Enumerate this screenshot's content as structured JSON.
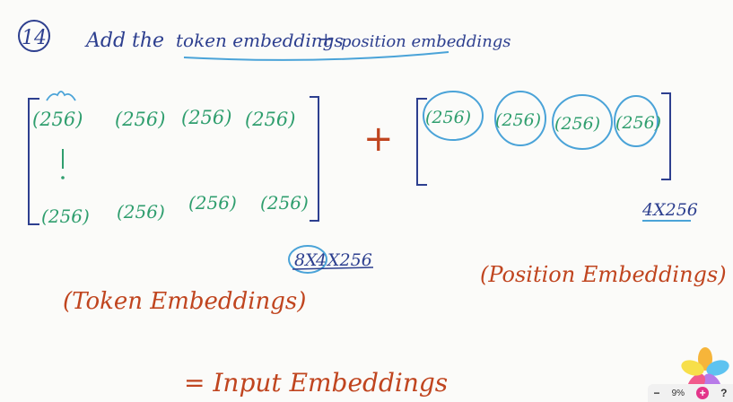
{
  "step_number": "14",
  "heading": {
    "prefix": "Add the",
    "term1": "token embeddings",
    "plus": "+",
    "term2": "position embeddings"
  },
  "token_matrix": {
    "top_row": [
      "(256)",
      "(256)",
      "(256)",
      "(256)"
    ],
    "bottom_row": [
      "(256)",
      "(256)",
      "(256)",
      "(256)"
    ],
    "shape": {
      "d1": "8",
      "x1": "X",
      "d2": "4",
      "rest": "X256"
    },
    "caption": "(Token Embeddings)"
  },
  "plus_sign": "+",
  "position_matrix": {
    "row": [
      "(256)",
      "(256)",
      "(256)",
      "(256)"
    ],
    "shape": "4X256",
    "caption": "(Position Embeddings)"
  },
  "result": "= Input Embeddings",
  "zoom": {
    "minus": "−",
    "level": "9%",
    "plus": "+",
    "help": "?"
  },
  "colors": {
    "ink_blue": "#2d3f8f",
    "vector_green": "#2f9e6e",
    "caption_orange": "#c0451f",
    "highlight_blue": "#4aa3d8"
  }
}
